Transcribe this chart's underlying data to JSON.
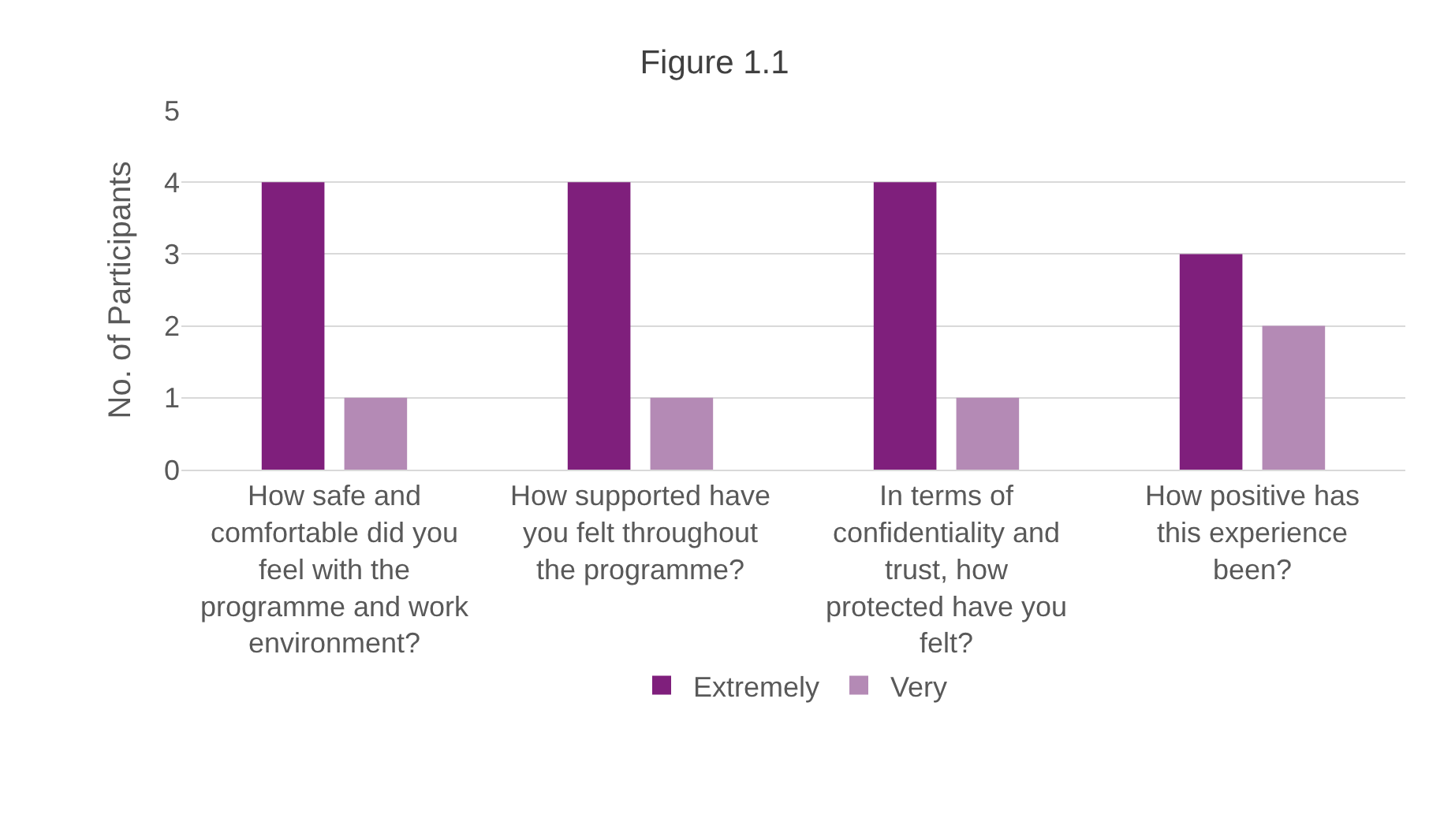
{
  "chart_data": {
    "type": "bar",
    "title": "Figure 1.1",
    "ylabel": "No. of Participants",
    "categories": [
      "How safe and comfortable did you feel with the programme and work environment?",
      "How supported have you felt throughout the programme?",
      "In terms of confidentiality and trust, how protected have you felt?",
      "How positive has this experience been?"
    ],
    "series": [
      {
        "name": "Extremely",
        "color": "#7f1f7c",
        "values": [
          4,
          4,
          4,
          3
        ]
      },
      {
        "name": "Very",
        "color": "#b48ab5",
        "values": [
          1,
          1,
          1,
          2
        ]
      }
    ],
    "ylim": [
      0,
      5
    ],
    "yticks": [
      0,
      1,
      2,
      3,
      4,
      5
    ],
    "grid": "y",
    "legend": "bottom"
  }
}
